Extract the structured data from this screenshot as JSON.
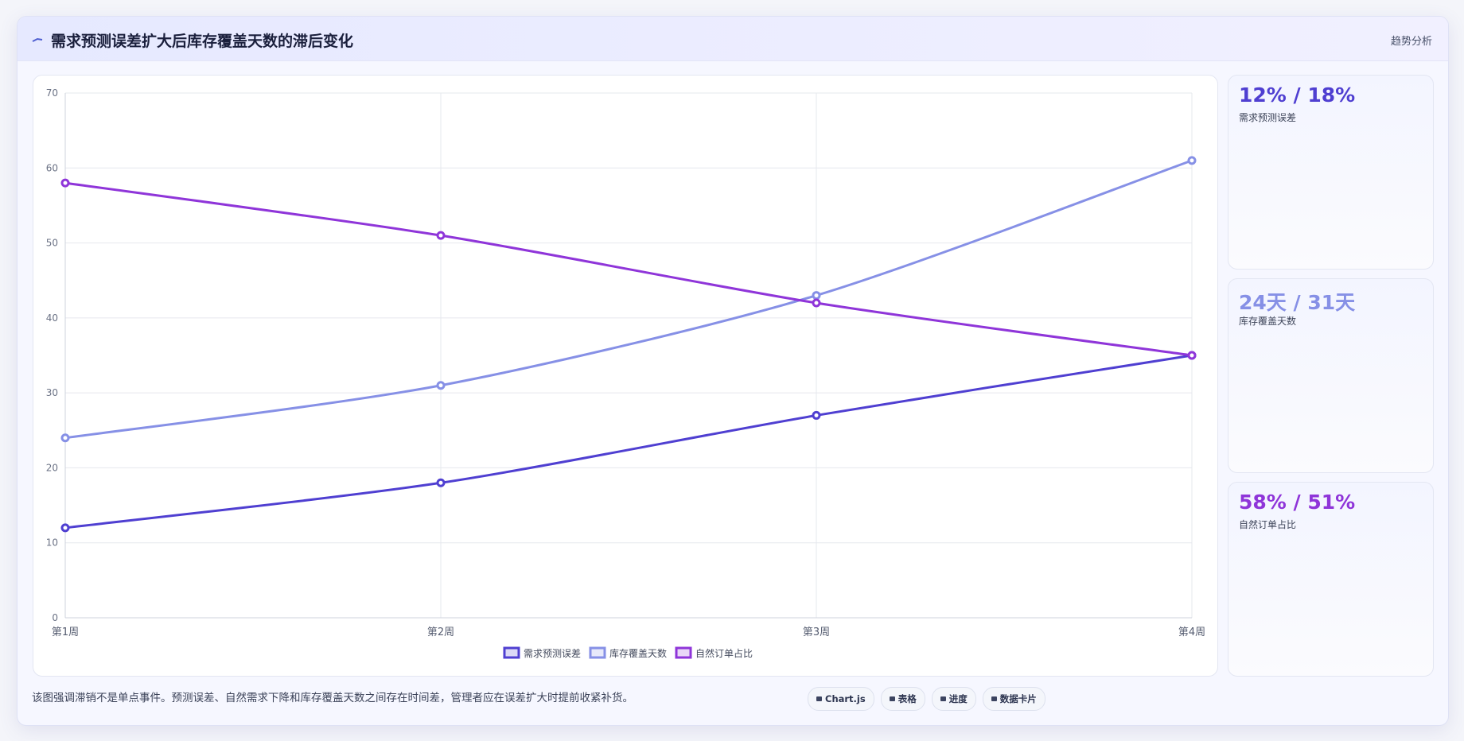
{
  "header": {
    "title": "需求预测误差扩大后库存覆盖天数的滞后变化",
    "tag": "趋势分析"
  },
  "chart_data": {
    "type": "line",
    "categories": [
      "第1周",
      "第2周",
      "第3周",
      "第4周"
    ],
    "series": [
      {
        "name": "需求预测误差",
        "color": "#4f3fd1",
        "values": [
          12,
          18,
          27,
          35
        ]
      },
      {
        "name": "库存覆盖天数",
        "color": "#8690e6",
        "values": [
          24,
          31,
          43,
          61
        ]
      },
      {
        "name": "自然订单占比",
        "color": "#8f35d9",
        "values": [
          58,
          51,
          42,
          35
        ]
      }
    ],
    "ylim": [
      0,
      70
    ],
    "yticks": [
      0,
      10,
      20,
      30,
      40,
      50,
      60,
      70
    ],
    "grid": true
  },
  "kpis": [
    {
      "value": "12% / 18%",
      "label": "需求预测误差",
      "color": "#4f3fd1"
    },
    {
      "value": "24天 / 31天",
      "label": "库存覆盖天数",
      "color": "#8690e6"
    },
    {
      "value": "58% / 51%",
      "label": "自然订单占比",
      "color": "#8f35d9"
    }
  ],
  "footer": {
    "note": "该图强调滞销不是单点事件。预测误差、自然需求下降和库存覆盖天数之间存在时间差，管理者应在误差扩大时提前收紧补货。",
    "buttons": [
      "Chart.js",
      "表格",
      "进度",
      "数据卡片"
    ]
  }
}
